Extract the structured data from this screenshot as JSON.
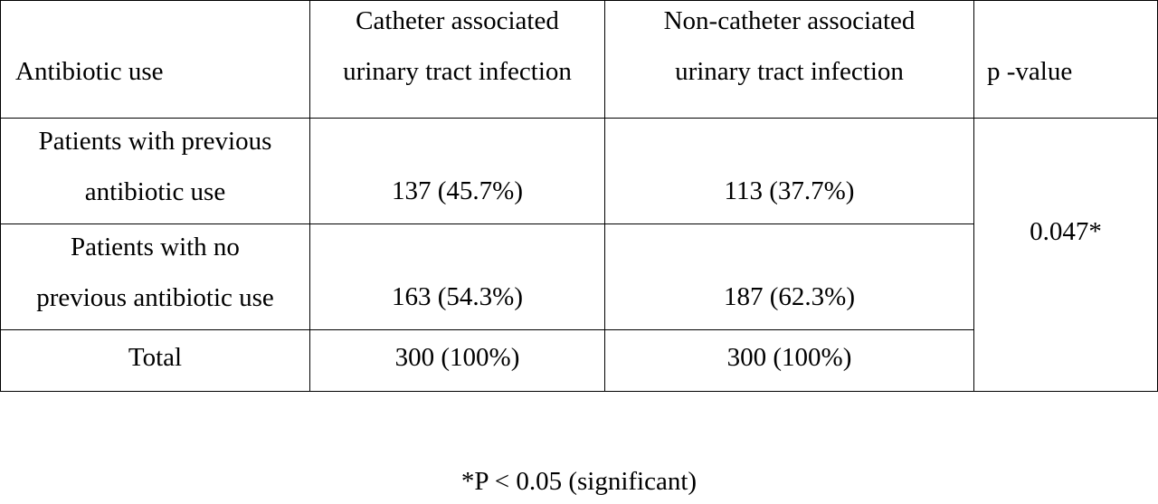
{
  "table": {
    "header": {
      "col1": "Antibiotic use",
      "col2_line1": "Catheter associated",
      "col2_line2": "urinary tract infection",
      "col3_line1": "Non-catheter associated",
      "col3_line2": "urinary tract infection",
      "col4": "p -value"
    },
    "rows": [
      {
        "label_line1": "Patients with previous",
        "label_line2": "antibiotic use",
        "catheter": "137 (45.7%)",
        "non_catheter": "113 (37.7%)"
      },
      {
        "label_line1": "Patients with no",
        "label_line2": "previous antibiotic use",
        "catheter": "163 (54.3%)",
        "non_catheter": "187 (62.3%)"
      },
      {
        "label": "Total",
        "catheter": "300 (100%)",
        "non_catheter": "300 (100%)"
      }
    ],
    "p_value": "0.047*"
  },
  "footnote": "*P < 0.05 (significant)"
}
